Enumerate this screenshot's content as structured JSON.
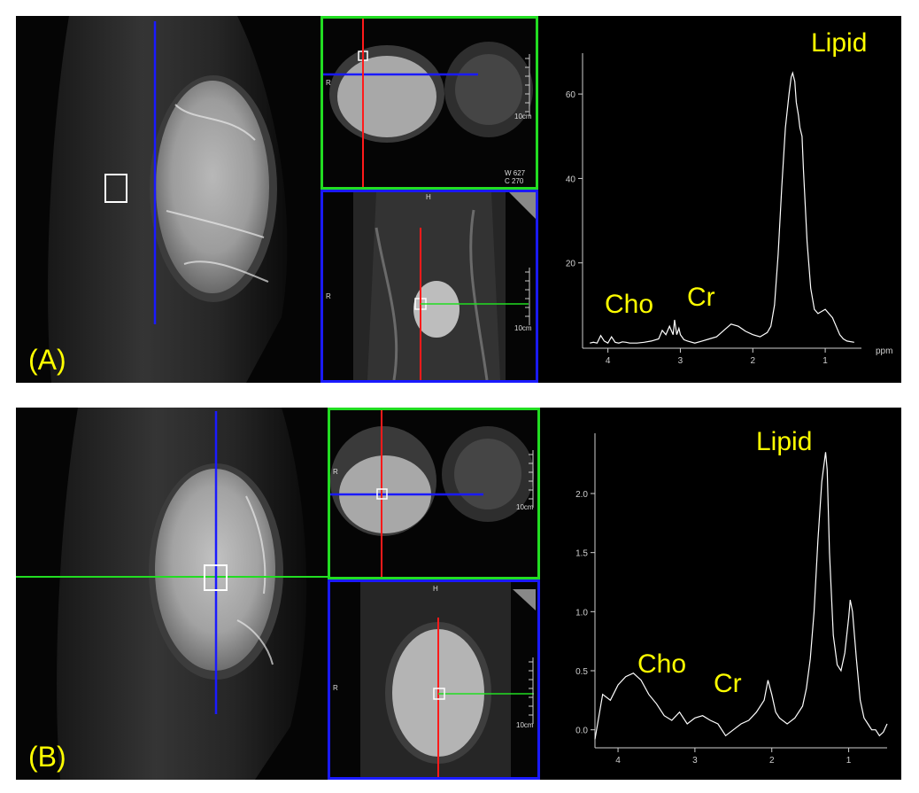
{
  "figure": {
    "a": {
      "label": "(A)",
      "window_w": "W  627",
      "window_c": "C  270",
      "scale_text": "10cm",
      "orientation_left": "R",
      "orientation_top": "H",
      "colors": {
        "sagittal_line": "#1a1aff",
        "axial_line": "#ff1a1a",
        "voxel_line": "#22dd22",
        "frame_top": "#22dd22",
        "frame_bottom": "#1a1aff"
      }
    },
    "b": {
      "label": "(B)",
      "scale_text": "10cm",
      "orientation_left": "R",
      "orientation_top": "H",
      "colors": {
        "sagittal_line": "#1a1aff",
        "axial_line": "#ff1a1a",
        "voxel_line": "#22dd22",
        "frame_top": "#22dd22",
        "frame_bottom": "#1a1aff"
      }
    }
  },
  "chart_data": [
    {
      "type": "line",
      "title": "",
      "xlabel": "ppm",
      "ylabel": "",
      "x_reversed": true,
      "xlim": [
        4.35,
        0.5
      ],
      "ylim": [
        0,
        68
      ],
      "x_ticks": [
        "4",
        "3",
        "2",
        "1"
      ],
      "y_ticks": [
        "20",
        "40",
        "60"
      ],
      "annotations": [
        "Cho",
        "Cr",
        "Lipid"
      ],
      "series": [
        {
          "x": [
            4.25,
            4.2,
            4.15,
            4.1,
            4.05,
            4.0,
            3.95,
            3.9,
            3.85,
            3.8,
            3.75,
            3.7,
            3.6,
            3.5,
            3.4,
            3.3,
            3.25,
            3.2,
            3.15,
            3.1,
            3.08,
            3.05,
            3.02,
            3.0,
            2.95,
            2.9,
            2.8,
            2.7,
            2.6,
            2.5,
            2.4,
            2.3,
            2.2,
            2.1,
            2.0,
            1.9,
            1.8,
            1.75,
            1.7,
            1.65,
            1.6,
            1.55,
            1.5,
            1.47,
            1.45,
            1.42,
            1.4,
            1.37,
            1.35,
            1.32,
            1.3,
            1.25,
            1.2,
            1.15,
            1.1,
            1.05,
            1.0,
            0.95,
            0.9,
            0.85,
            0.8,
            0.75,
            0.7,
            0.6
          ],
          "y": [
            1.0,
            1.2,
            1.0,
            2.8,
            1.5,
            1.0,
            2.5,
            1.2,
            1.0,
            1.3,
            1.2,
            1.0,
            1.0,
            1.2,
            1.5,
            2.0,
            4.0,
            3.0,
            5.0,
            3.0,
            6.5,
            3.0,
            4.5,
            3.0,
            1.8,
            1.5,
            1.0,
            1.5,
            2.0,
            2.5,
            4.0,
            5.5,
            5.0,
            3.8,
            3.0,
            2.5,
            3.5,
            5.0,
            10.0,
            22.0,
            38.0,
            52.0,
            60.0,
            64.0,
            65.0,
            63.0,
            58.0,
            55.0,
            52.0,
            50.0,
            42.0,
            25.0,
            14.0,
            9.0,
            8.0,
            8.5,
            9.0,
            8.0,
            7.0,
            5.0,
            3.0,
            2.0,
            1.5,
            1.2
          ]
        }
      ]
    },
    {
      "type": "line",
      "title": "",
      "xlabel": "",
      "ylabel": "",
      "x_reversed": true,
      "xlim": [
        4.3,
        0.5
      ],
      "ylim": [
        -0.1,
        2.45
      ],
      "x_ticks": [
        "4",
        "3",
        "2",
        "1"
      ],
      "y_ticks": [
        "0.0",
        "0.5",
        "1.0",
        "1.5",
        "2.0"
      ],
      "annotations": [
        "Cho",
        "Cr",
        "Lipid"
      ],
      "series": [
        {
          "x": [
            4.3,
            4.2,
            4.1,
            4.0,
            3.9,
            3.8,
            3.7,
            3.6,
            3.5,
            3.4,
            3.3,
            3.2,
            3.1,
            3.0,
            2.9,
            2.8,
            2.7,
            2.6,
            2.5,
            2.4,
            2.3,
            2.2,
            2.1,
            2.05,
            2.0,
            1.95,
            1.9,
            1.8,
            1.7,
            1.6,
            1.55,
            1.5,
            1.45,
            1.4,
            1.35,
            1.3,
            1.28,
            1.25,
            1.2,
            1.15,
            1.1,
            1.05,
            1.0,
            0.98,
            0.95,
            0.9,
            0.85,
            0.8,
            0.75,
            0.7,
            0.65,
            0.6,
            0.55,
            0.5
          ],
          "y": [
            -0.08,
            0.3,
            0.25,
            0.38,
            0.45,
            0.48,
            0.42,
            0.3,
            0.22,
            0.12,
            0.08,
            0.15,
            0.05,
            0.1,
            0.12,
            0.08,
            0.05,
            -0.05,
            0.0,
            0.05,
            0.08,
            0.15,
            0.25,
            0.42,
            0.3,
            0.15,
            0.1,
            0.05,
            0.1,
            0.2,
            0.35,
            0.6,
            1.0,
            1.6,
            2.1,
            2.35,
            2.2,
            1.5,
            0.8,
            0.55,
            0.5,
            0.65,
            0.95,
            1.1,
            1.0,
            0.6,
            0.25,
            0.1,
            0.05,
            0.0,
            0.0,
            -0.05,
            -0.02,
            0.05
          ]
        }
      ]
    }
  ]
}
